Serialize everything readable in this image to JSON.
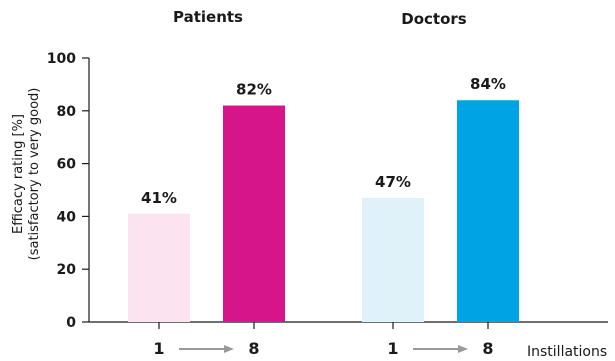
{
  "chart_data": {
    "type": "bar",
    "groups": [
      {
        "title": "Patients",
        "bars": [
          {
            "category": "1",
            "value": 41,
            "label": "41%",
            "color": "#fbe4ef"
          },
          {
            "category": "8",
            "value": 82,
            "label": "82%",
            "color": "#d6158a"
          }
        ]
      },
      {
        "title": "Doctors",
        "bars": [
          {
            "category": "1",
            "value": 47,
            "label": "47%",
            "color": "#dff2fa"
          },
          {
            "category": "8",
            "value": 84,
            "label": "84%",
            "color": "#00a4e4"
          }
        ]
      }
    ],
    "ylabel_line1": "Efficacy rating [%]",
    "ylabel_line2": "(satisfactory to very good)",
    "xlabel": "Instillations",
    "ylim": [
      0,
      100
    ],
    "yticks": [
      "0",
      "20",
      "40",
      "60",
      "80",
      "100"
    ],
    "grid": false,
    "colors": {
      "axis": "#1a1a1a",
      "arrow": "#999999"
    }
  }
}
